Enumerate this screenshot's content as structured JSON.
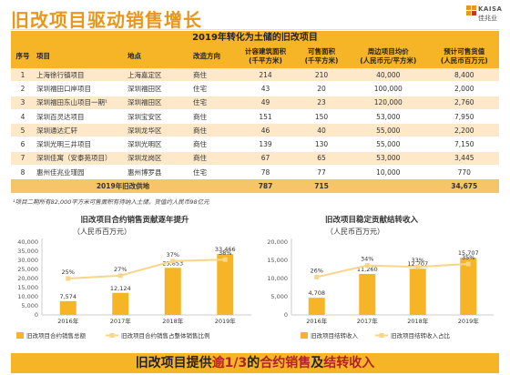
{
  "title": "旧改项目驱动销售增长",
  "logo": {
    "brand": "KAISA",
    "cn": "佳兆业"
  },
  "table": {
    "title": "2019年转化为土储的旧改项目",
    "headers": [
      "序号",
      "项目",
      "地点",
      "改造方向",
      "计容建筑面积\n(千平方米)",
      "可售面积\n(千平方米)",
      "周边项目均价\n(人民币元/平方米)",
      "预计可售货值\n(人民币百万元)"
    ],
    "rows": [
      [
        "1",
        "上海徐行镇项目",
        "上海嘉定区",
        "商住",
        "214",
        "210",
        "40,000",
        "8,400"
      ],
      [
        "2",
        "深圳福田口岸项目",
        "深圳福田区",
        "住宅",
        "43",
        "20",
        "100,000",
        "2,000"
      ],
      [
        "3",
        "深圳福田东山项目一期¹",
        "深圳福田区",
        "住宅",
        "49",
        "23",
        "120,000",
        "2,760"
      ],
      [
        "4",
        "深圳百灵达项目",
        "深圳宝安区",
        "商住",
        "151",
        "150",
        "53,000",
        "7,950"
      ],
      [
        "5",
        "深圳通达汇轩",
        "深圳龙华区",
        "商住",
        "46",
        "40",
        "55,000",
        "2,200"
      ],
      [
        "6",
        "深圳光明三井项目",
        "深圳光明区",
        "商住",
        "139",
        "130",
        "55,000",
        "7,150"
      ],
      [
        "7",
        "深圳佳寓（安泰苑项目）",
        "深圳龙岗区",
        "商住",
        "67",
        "65",
        "53,000",
        "3,445"
      ],
      [
        "8",
        "惠州佳兆业瑾园",
        "惠州博罗县",
        "住宅",
        "78",
        "77",
        "10,000",
        "770"
      ]
    ],
    "total": {
      "label": "2019年旧改供地",
      "area": "787",
      "sellable": "715",
      "price": "",
      "value": "34,675"
    },
    "footnote": "¹项目二期所有82,000平方米可售面积有待纳入土储，货值约人民币98亿元"
  },
  "chart_data": [
    {
      "type": "bar",
      "title": "旧改项目合约销售贡献逐年提升",
      "subtitle": "（人民币百万元）",
      "categories": [
        "2016年",
        "2017年",
        "2018年",
        "2019年"
      ],
      "series": [
        {
          "name": "旧改项目合约销售总额",
          "values": [
            7574,
            12124,
            25853,
            33466
          ],
          "labels": [
            "7,574",
            "12,124",
            "25,853",
            "33,466"
          ]
        },
        {
          "name": "旧改项目合约销售占整体销售比例",
          "values": [
            25,
            27,
            37,
            38
          ],
          "labels": [
            "25%",
            "27%",
            "37%",
            "38%"
          ]
        }
      ],
      "yticks": [
        "0",
        "5,000",
        "10,000",
        "15,000",
        "20,000",
        "25,000",
        "30,000",
        "35,000",
        "40,000"
      ],
      "ylim": [
        0,
        40000
      ],
      "y2lim": [
        0,
        50
      ],
      "colors": {
        "bar": "#f6b527",
        "line": "#f9d58a",
        "axis": "#cccccc"
      }
    },
    {
      "type": "bar",
      "title": "旧改项目稳定贡献结转收入",
      "subtitle": "（人民币百万元）",
      "categories": [
        "2016年",
        "2017年",
        "2018年",
        "2019年"
      ],
      "series": [
        {
          "name": "旧改项目结转收入",
          "values": [
            4708,
            11260,
            12707,
            15707
          ],
          "labels": [
            "4,708",
            "11,260",
            "12,707",
            "15,707"
          ]
        },
        {
          "name": "旧改项目结转收入占比",
          "values": [
            26,
            34,
            33,
            35
          ],
          "labels": [
            "26%",
            "34%",
            "33%",
            "35%"
          ]
        }
      ],
      "yticks": [
        "0",
        "5,000",
        "10,000",
        "15,000",
        "20,000"
      ],
      "ylim": [
        0,
        20000
      ],
      "y2lim": [
        0,
        50
      ],
      "colors": {
        "bar": "#f6b527",
        "line": "#f9d58a",
        "axis": "#cccccc"
      }
    }
  ],
  "banner": {
    "pre": "旧改项目提供",
    "hl1": "逾1/3",
    "mid": "的",
    "hl2": "合约销售",
    "and": "及",
    "hl3": "结转收入"
  }
}
